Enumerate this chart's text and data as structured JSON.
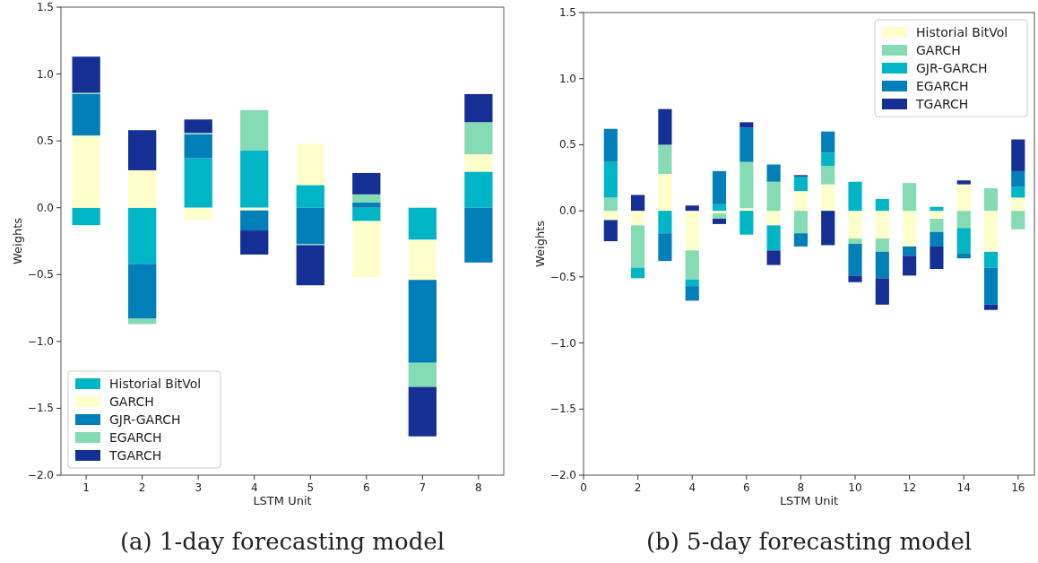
{
  "chart_data": [
    {
      "type": "bar",
      "stacked": true,
      "xlabel": "LSTM Unit",
      "ylabel": "Weights",
      "x": [
        1,
        2,
        3,
        4,
        5,
        6,
        7,
        8
      ],
      "xlim": [
        0.55,
        8.45
      ],
      "xticks": [
        1,
        2,
        3,
        4,
        5,
        6,
        7,
        8
      ],
      "ylim": [
        -2.0,
        1.5
      ],
      "yticks": [
        {
          "value": -2.0,
          "label": "−2.0"
        },
        {
          "value": -1.5,
          "label": "−1.5"
        },
        {
          "value": -1.0,
          "label": "−1.0"
        },
        {
          "value": -0.5,
          "label": "−0.5"
        },
        {
          "value": 0,
          "label": "0.0"
        },
        {
          "value": 0.5,
          "label": "0.5"
        },
        {
          "value": 1.0,
          "label": "1.0"
        },
        {
          "value": 1.5,
          "label": "1.5"
        }
      ],
      "legend": "bottom left",
      "annotations": [
        "(a) 1-day forecasting model"
      ],
      "series": [
        {
          "name": "Historial BitVol",
          "color": "#00b5c6",
          "values": [
            -0.13,
            -0.42,
            0.37,
            0.43,
            0.17,
            -0.1,
            -0.24,
            0.27
          ]
        },
        {
          "name": "GARCH",
          "color": "#ffffcc",
          "values": [
            0.54,
            0.28,
            -0.09,
            -0.02,
            0.31,
            -0.42,
            -0.3,
            0.13
          ]
        },
        {
          "name": "GJR-GARCH",
          "color": "#007fb9",
          "values": [
            0.31,
            -0.41,
            0.18,
            -0.15,
            -0.27,
            0.04,
            -0.62,
            -0.41
          ]
        },
        {
          "name": "EGARCH",
          "color": "#85dbb4",
          "values": [
            0.01,
            -0.04,
            0.01,
            0.3,
            -0.01,
            0.06,
            -0.18,
            0.24
          ]
        },
        {
          "name": "TGARCH",
          "color": "#162f95",
          "values": [
            0.27,
            0.3,
            0.1,
            -0.18,
            -0.3,
            0.16,
            -0.37,
            0.21
          ]
        }
      ]
    },
    {
      "type": "bar",
      "stacked": true,
      "xlabel": "LSTM Unit",
      "ylabel": "Weights",
      "x": [
        1,
        2,
        3,
        4,
        5,
        6,
        7,
        8,
        9,
        10,
        11,
        12,
        13,
        14,
        15,
        16
      ],
      "xlim": [
        0,
        16.6
      ],
      "xticks": [
        0,
        2,
        4,
        6,
        8,
        10,
        12,
        14,
        16
      ],
      "ylim": [
        -2.0,
        1.5
      ],
      "yticks": [
        {
          "value": -2.0,
          "label": "−2.0"
        },
        {
          "value": -1.5,
          "label": "−1.5"
        },
        {
          "value": -1.0,
          "label": "−1.0"
        },
        {
          "value": -0.5,
          "label": "−0.5"
        },
        {
          "value": 0,
          "label": "0.0"
        },
        {
          "value": 0.5,
          "label": "0.5"
        },
        {
          "value": 1.0,
          "label": "1.0"
        },
        {
          "value": 1.5,
          "label": "1.5"
        }
      ],
      "legend": "top right",
      "annotations": [
        "(b) 5-day forecasting model"
      ],
      "series": [
        {
          "name": "Historial BitVol",
          "color": "#ffffcc",
          "values": [
            -0.07,
            -0.11,
            0.28,
            -0.3,
            -0.02,
            0.02,
            -0.11,
            0.15,
            0.2,
            -0.21,
            -0.21,
            -0.27,
            -0.06,
            0.2,
            -0.31,
            0.1
          ]
        },
        {
          "name": "GARCH",
          "color": "#85dbb4",
          "values": [
            0.1,
            -0.32,
            0.22,
            -0.22,
            -0.04,
            0.35,
            0.22,
            -0.17,
            0.14,
            -0.04,
            -0.1,
            0.21,
            -0.1,
            -0.13,
            0.17,
            -0.14
          ]
        },
        {
          "name": "GJR-GARCH",
          "color": "#00b5c6",
          "values": [
            0.27,
            -0.08,
            -0.17,
            -0.05,
            0.05,
            -0.18,
            -0.19,
            0.11,
            0.1,
            0.22,
            0.09,
            0,
            0.03,
            -0.19,
            -0.12,
            0.08
          ]
        },
        {
          "name": "EGARCH",
          "color": "#007fb9",
          "values": [
            0.25,
            0,
            -0.21,
            -0.11,
            0.25,
            0.26,
            0.13,
            -0.1,
            0.16,
            -0.24,
            -0.2,
            -0.07,
            -0.11,
            -0.04,
            -0.28,
            0.12
          ]
        },
        {
          "name": "TGARCH",
          "color": "#162f95",
          "values": [
            -0.16,
            0.12,
            0.27,
            0.04,
            -0.04,
            0.04,
            -0.11,
            0.01,
            -0.26,
            -0.05,
            -0.2,
            -0.15,
            -0.17,
            0.03,
            -0.04,
            0.24
          ]
        }
      ]
    }
  ]
}
